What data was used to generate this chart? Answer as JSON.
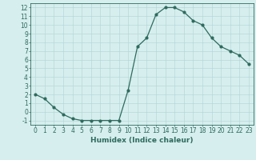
{
  "x": [
    0,
    1,
    2,
    3,
    4,
    5,
    6,
    7,
    8,
    9,
    10,
    11,
    12,
    13,
    14,
    15,
    16,
    17,
    18,
    19,
    20,
    21,
    22,
    23
  ],
  "y": [
    2,
    1.5,
    0.5,
    -0.3,
    -0.8,
    -1.0,
    -1.0,
    -1.0,
    -1.0,
    -1.0,
    2.5,
    7.5,
    8.5,
    11.2,
    12.0,
    12.0,
    11.5,
    10.5,
    10.0,
    8.5,
    7.5,
    7.0,
    6.5,
    5.5
  ],
  "line_color": "#2e6b5e",
  "marker_color": "#2e6b5e",
  "bg_color": "#d6eeee",
  "grid_color": "#b8d8d8",
  "xlabel": "Humidex (Indice chaleur)",
  "xlim": [
    -0.5,
    23.5
  ],
  "ylim": [
    -1.5,
    12.5
  ],
  "yticks": [
    -1,
    0,
    1,
    2,
    3,
    4,
    5,
    6,
    7,
    8,
    9,
    10,
    11,
    12
  ],
  "xticks": [
    0,
    1,
    2,
    3,
    4,
    5,
    6,
    7,
    8,
    9,
    10,
    11,
    12,
    13,
    14,
    15,
    16,
    17,
    18,
    19,
    20,
    21,
    22,
    23
  ],
  "label_fontsize": 6.5,
  "tick_fontsize": 5.5,
  "linewidth": 0.9,
  "markersize": 2.0
}
